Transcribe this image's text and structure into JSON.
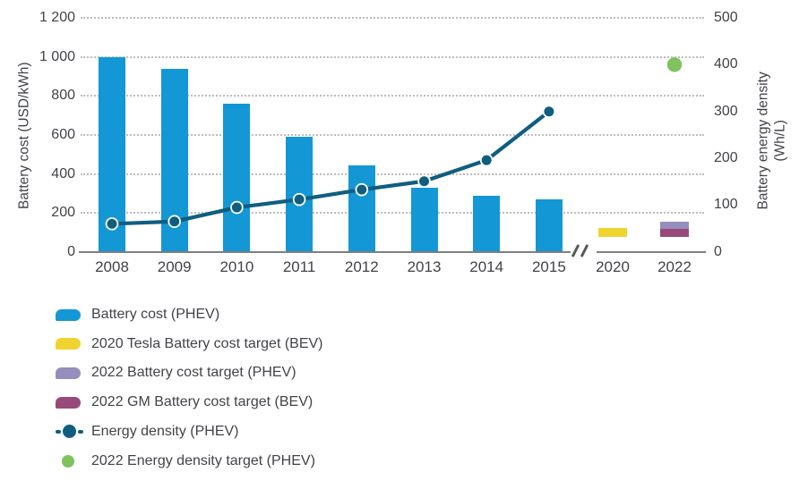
{
  "axes": {
    "left": {
      "title": "Battery cost (USD/kWh)",
      "tick_labels": [
        "0",
        "200",
        "400",
        "600",
        "800",
        "1 000",
        "1 200"
      ],
      "tick_values": [
        0,
        200,
        400,
        600,
        800,
        1000,
        1200
      ],
      "range": [
        0,
        1200
      ]
    },
    "right": {
      "title_line1": "Battery energy density",
      "title_line2": "(Wh/L)",
      "tick_labels": [
        "0",
        "100",
        "200",
        "300",
        "400",
        "500"
      ],
      "tick_values": [
        0,
        100,
        200,
        300,
        400,
        500
      ],
      "range": [
        0,
        500
      ]
    }
  },
  "chart_data": {
    "type": "bar",
    "subtype": "bar+line combo with broken category axis",
    "categories": [
      "2008",
      "2009",
      "2010",
      "2011",
      "2012",
      "2013",
      "2014",
      "2015"
    ],
    "extra_categories": [
      "2020",
      "2022"
    ],
    "axis_break_between": [
      "2015",
      "2020"
    ],
    "series": [
      {
        "name": "Battery cost (PHEV)",
        "type": "bar",
        "axis": "left",
        "color_key": "blue",
        "values": [
          1000,
          940,
          760,
          590,
          445,
          330,
          290,
          270
        ]
      },
      {
        "name": "Energy density (PHEV)",
        "type": "line",
        "axis": "right",
        "color_key": "teal",
        "values": [
          60,
          65,
          95,
          112,
          133,
          151,
          196,
          300
        ]
      }
    ],
    "targets": [
      {
        "name": "2020 Tesla Battery cost target (BEV)",
        "category": "2020",
        "axis": "left",
        "band_low": 77,
        "band_high": 123,
        "color_key": "yellow"
      },
      {
        "name": "2022 Battery cost target (PHEV)",
        "category": "2022",
        "axis": "left",
        "band_low": 116,
        "band_high": 154,
        "color_key": "light_purple"
      },
      {
        "name": "2022 GM Battery cost target (BEV)",
        "category": "2022",
        "axis": "left",
        "band_low": 78,
        "band_high": 116,
        "color_key": "dark_purple"
      },
      {
        "name": "2022 Energy density target (PHEV)",
        "category": "2022",
        "axis": "right",
        "value": 400,
        "color_key": "green"
      }
    ],
    "grid": "horizontal dotted lines at left-axis ticks",
    "legend_position": "bottom-left"
  },
  "legend": {
    "items": [
      {
        "label": "Battery cost (PHEV)",
        "marker": "bar-swatch",
        "color_key": "blue"
      },
      {
        "label": "2020 Tesla Battery cost target (BEV)",
        "marker": "bar-swatch",
        "color_key": "yellow"
      },
      {
        "label": "2022 Battery cost target (PHEV)",
        "marker": "bar-swatch",
        "color_key": "light_purple"
      },
      {
        "label": "2022 GM Battery cost target (BEV)",
        "marker": "bar-swatch",
        "color_key": "dark_purple"
      },
      {
        "label": "Energy density (PHEV)",
        "marker": "line-marker",
        "color_key": "teal"
      },
      {
        "label": "2022 Energy density target (PHEV)",
        "marker": "dot",
        "color_key": "green"
      }
    ]
  },
  "colors": {
    "blue": "#1497D5",
    "yellow": "#EFD42F",
    "light_purple": "#968EBD",
    "dark_purple": "#98497A",
    "teal": "#0F5E80",
    "green": "#7EC35E",
    "grid": "#BDBDBD",
    "axis_line": "#7F7F7F",
    "text": "#414348"
  }
}
